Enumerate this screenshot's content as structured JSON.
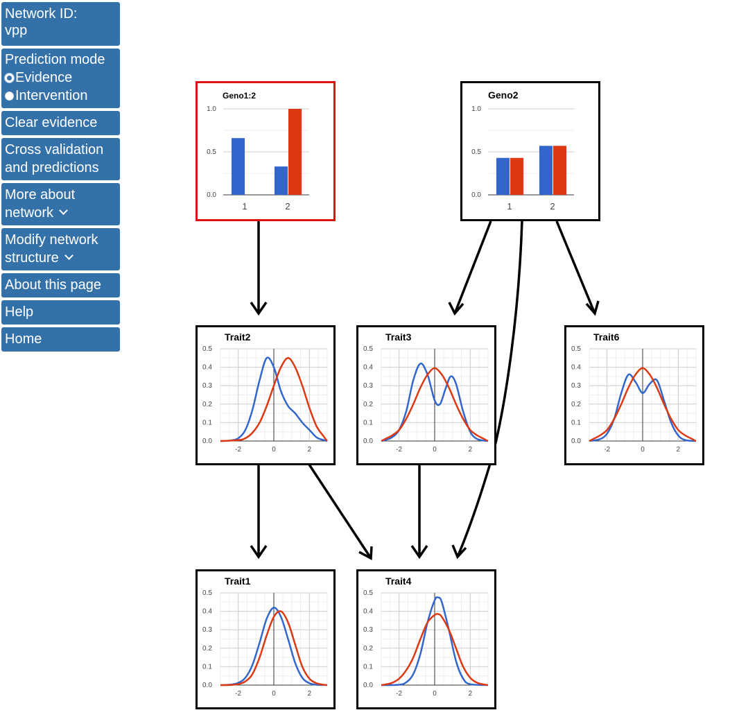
{
  "sidebar": {
    "network_id": {
      "label": "Network ID:",
      "value": "vpp"
    },
    "prediction_mode": {
      "label": "Prediction mode",
      "options": [
        {
          "label": "Evidence",
          "checked": true
        },
        {
          "label": "Intervention",
          "checked": false
        }
      ]
    },
    "clear_evidence": "Clear evidence",
    "cross_validation": [
      "Cross validation",
      "and predictions"
    ],
    "more_about": [
      "More about",
      "network"
    ],
    "modify_structure": [
      "Modify network",
      "structure"
    ],
    "about_page": "About this page",
    "help": "Help",
    "home": "Home"
  },
  "colors": {
    "series_a": "#3366cc",
    "series_b": "#dc3912",
    "sidebar_bg": "#3471a8",
    "evidence_border": "#e01010"
  },
  "nodes": {
    "geno1": {
      "title": "Geno1:2",
      "evidence": true,
      "chart_data": {
        "type": "bar",
        "categories": [
          "1",
          "2"
        ],
        "series": [
          {
            "values": [
              0.66,
              0.33
            ]
          },
          {
            "values": [
              0.0,
              1.0
            ]
          }
        ],
        "ylim": [
          0,
          1
        ],
        "yticks": [
          "0.0",
          "0.5",
          "1.0"
        ]
      }
    },
    "geno2": {
      "title": "Geno2",
      "evidence": false,
      "chart_data": {
        "type": "bar",
        "categories": [
          "1",
          "2"
        ],
        "series": [
          {
            "values": [
              0.43,
              0.57
            ]
          },
          {
            "values": [
              0.43,
              0.57
            ]
          }
        ],
        "ylim": [
          0,
          1
        ],
        "yticks": [
          "0.0",
          "0.5",
          "1.0"
        ]
      }
    },
    "trait2": {
      "title": "Trait2",
      "chart_data": {
        "type": "line",
        "xlim": [
          -3,
          3
        ],
        "ylim": [
          0,
          0.5
        ],
        "xticks": [
          "-2",
          "0",
          "2"
        ],
        "yticks": [
          "0.0",
          "0.1",
          "0.2",
          "0.3",
          "0.4",
          "0.5"
        ],
        "series": [
          {
            "x": [
              -2.4,
              -2.0,
              -1.6,
              -1.2,
              -0.8,
              -0.4,
              0.0,
              0.4,
              0.8,
              1.2,
              1.6,
              2.0,
              2.4,
              2.8
            ],
            "y": [
              0.003,
              0.015,
              0.06,
              0.17,
              0.33,
              0.45,
              0.4,
              0.27,
              0.19,
              0.15,
              0.1,
              0.06,
              0.02,
              0.005
            ]
          },
          {
            "x": [
              -2.0,
              -1.6,
              -1.2,
              -0.8,
              -0.4,
              0.0,
              0.4,
              0.8,
              1.2,
              1.6,
              2.0,
              2.4,
              2.8
            ],
            "y": [
              0.005,
              0.015,
              0.045,
              0.1,
              0.19,
              0.3,
              0.4,
              0.45,
              0.4,
              0.3,
              0.18,
              0.08,
              0.025
            ]
          }
        ]
      }
    },
    "trait3": {
      "title": "Trait3",
      "chart_data": {
        "type": "line",
        "xlim": [
          -3,
          3
        ],
        "ylim": [
          0,
          0.5
        ],
        "xticks": [
          "-2",
          "0",
          "2"
        ],
        "yticks": [
          "0.0",
          "0.1",
          "0.2",
          "0.3",
          "0.4",
          "0.5"
        ],
        "series": [
          {
            "x": [
              -2.8,
              -2.4,
              -2.0,
              -1.6,
              -1.2,
              -0.8,
              -0.4,
              0.0,
              0.3,
              0.6,
              0.9,
              1.2,
              1.6,
              2.0,
              2.4
            ],
            "y": [
              0.005,
              0.02,
              0.06,
              0.16,
              0.33,
              0.42,
              0.36,
              0.22,
              0.2,
              0.28,
              0.35,
              0.31,
              0.16,
              0.05,
              0.01
            ]
          },
          {
            "x": [
              -2.8,
              -2.4,
              -2.0,
              -1.6,
              -1.2,
              -0.8,
              -0.4,
              0.0,
              0.4,
              0.8,
              1.2,
              1.6,
              2.0,
              2.4,
              2.8
            ],
            "y": [
              0.01,
              0.03,
              0.06,
              0.12,
              0.2,
              0.29,
              0.36,
              0.395,
              0.36,
              0.29,
              0.2,
              0.12,
              0.06,
              0.03,
              0.01
            ]
          }
        ]
      }
    },
    "trait6": {
      "title": "Trait6",
      "chart_data": {
        "type": "line",
        "xlim": [
          -3,
          3
        ],
        "ylim": [
          0,
          0.5
        ],
        "xticks": [
          "-2",
          "0",
          "2"
        ],
        "yticks": [
          "0.0",
          "0.1",
          "0.2",
          "0.3",
          "0.4",
          "0.5"
        ],
        "series": [
          {
            "x": [
              -2.4,
              -2.0,
              -1.6,
              -1.2,
              -0.8,
              -0.4,
              0.0,
              0.4,
              0.8,
              1.2,
              1.6,
              2.0,
              2.4
            ],
            "y": [
              0.01,
              0.04,
              0.12,
              0.26,
              0.36,
              0.32,
              0.26,
              0.31,
              0.33,
              0.22,
              0.1,
              0.03,
              0.005
            ]
          },
          {
            "x": [
              -2.8,
              -2.4,
              -2.0,
              -1.6,
              -1.2,
              -0.8,
              -0.4,
              0.0,
              0.4,
              0.8,
              1.2,
              1.6,
              2.0,
              2.4,
              2.8
            ],
            "y": [
              0.01,
              0.03,
              0.06,
              0.12,
              0.2,
              0.29,
              0.36,
              0.395,
              0.36,
              0.29,
              0.2,
              0.12,
              0.06,
              0.03,
              0.01
            ]
          }
        ]
      }
    },
    "trait1": {
      "title": "Trait1",
      "chart_data": {
        "type": "line",
        "xlim": [
          -3,
          3
        ],
        "ylim": [
          0,
          0.5
        ],
        "xticks": [
          "-2",
          "0",
          "2"
        ],
        "yticks": [
          "0.0",
          "0.1",
          "0.2",
          "0.3",
          "0.4",
          "0.5"
        ],
        "series": [
          {
            "x": [
              -2.4,
              -2.0,
              -1.6,
              -1.2,
              -0.8,
              -0.4,
              0.0,
              0.4,
              0.8,
              1.2,
              1.6,
              2.0,
              2.4
            ],
            "y": [
              0.003,
              0.012,
              0.04,
              0.11,
              0.23,
              0.36,
              0.42,
              0.37,
              0.25,
              0.12,
              0.04,
              0.01,
              0.002
            ]
          },
          {
            "x": [
              -2.4,
              -2.0,
              -1.6,
              -1.2,
              -0.8,
              -0.4,
              0.0,
              0.4,
              0.8,
              1.2,
              1.6,
              2.0,
              2.4,
              2.8
            ],
            "y": [
              0.001,
              0.005,
              0.02,
              0.06,
              0.15,
              0.27,
              0.37,
              0.4,
              0.34,
              0.22,
              0.1,
              0.035,
              0.01,
              0.002
            ]
          }
        ]
      }
    },
    "trait4": {
      "title": "Trait4",
      "chart_data": {
        "type": "line",
        "xlim": [
          -3,
          3
        ],
        "ylim": [
          0,
          0.5
        ],
        "xticks": [
          "-2",
          "0",
          "2"
        ],
        "yticks": [
          "0.0",
          "0.1",
          "0.2",
          "0.3",
          "0.4",
          "0.5"
        ],
        "series": [
          {
            "x": [
              -2.0,
              -1.6,
              -1.2,
              -0.8,
              -0.4,
              0.0,
              0.2,
              0.4,
              0.8,
              1.2,
              1.6,
              2.0
            ],
            "y": [
              0.002,
              0.015,
              0.06,
              0.17,
              0.34,
              0.46,
              0.475,
              0.45,
              0.3,
              0.13,
              0.035,
              0.005
            ]
          },
          {
            "x": [
              -2.8,
              -2.4,
              -2.0,
              -1.6,
              -1.2,
              -0.8,
              -0.4,
              0.0,
              0.2,
              0.4,
              0.8,
              1.2,
              1.6,
              2.0,
              2.4,
              2.8
            ],
            "y": [
              0.003,
              0.012,
              0.035,
              0.08,
              0.15,
              0.25,
              0.34,
              0.38,
              0.385,
              0.37,
              0.3,
              0.2,
              0.1,
              0.04,
              0.012,
              0.003
            ]
          }
        ]
      }
    }
  }
}
